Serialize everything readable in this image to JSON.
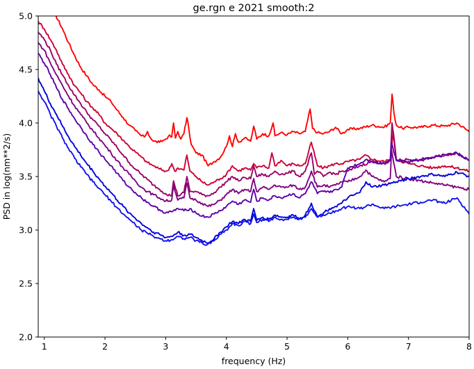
{
  "chart_data": {
    "type": "line",
    "title": "ge.rgn e 2021 smooth:2",
    "xlabel": "frequency (Hz)",
    "ylabel": "PSD in log(nm**2/s)",
    "xlim": [
      0.9,
      8.0
    ],
    "ylim": [
      2.0,
      5.0
    ],
    "xticks": [
      "1",
      "2",
      "3",
      "4",
      "5",
      "6",
      "7",
      "8"
    ],
    "yticks": [
      "2.0",
      "2.5",
      "3.0",
      "3.5",
      "4.0",
      "4.5",
      "5.0"
    ],
    "grid": false,
    "legend": "none",
    "series": [
      {
        "color": "#ff0000",
        "x": [
          1.15,
          1.3,
          1.4,
          1.5,
          1.6,
          1.7,
          1.8,
          1.9,
          2.0,
          2.1,
          2.2,
          2.3,
          2.4,
          2.5,
          2.6,
          2.65,
          2.7,
          2.75,
          2.8,
          2.9,
          3.0,
          3.05,
          3.1,
          3.13,
          3.16,
          3.2,
          3.25,
          3.3,
          3.35,
          3.38,
          3.42,
          3.5,
          3.6,
          3.7,
          3.8,
          3.9,
          4.0,
          4.05,
          4.1,
          4.15,
          4.2,
          4.3,
          4.4,
          4.45,
          4.5,
          4.6,
          4.7,
          4.77,
          4.8,
          4.9,
          5.0,
          5.1,
          5.2,
          5.3,
          5.38,
          5.42,
          5.5,
          5.6,
          5.7,
          5.8,
          5.9,
          6.0,
          6.2,
          6.4,
          6.6,
          6.7,
          6.73,
          6.76,
          6.8,
          6.9,
          7.0,
          7.2,
          7.4,
          7.6,
          7.8,
          8.0
        ],
        "y": [
          5.05,
          4.88,
          4.75,
          4.63,
          4.52,
          4.44,
          4.36,
          4.31,
          4.25,
          4.2,
          4.12,
          4.05,
          3.98,
          3.93,
          3.88,
          3.87,
          3.92,
          3.86,
          3.83,
          3.82,
          3.85,
          3.88,
          3.87,
          4.0,
          3.86,
          3.92,
          3.85,
          3.9,
          4.05,
          3.95,
          3.8,
          3.72,
          3.7,
          3.6,
          3.64,
          3.68,
          3.78,
          3.88,
          3.78,
          3.9,
          3.82,
          3.86,
          3.83,
          3.97,
          3.85,
          3.9,
          3.88,
          4.0,
          3.88,
          3.91,
          3.89,
          3.92,
          3.9,
          3.92,
          4.13,
          3.95,
          3.91,
          3.9,
          3.92,
          3.96,
          3.9,
          3.94,
          3.95,
          3.98,
          3.96,
          4.0,
          4.27,
          4.1,
          3.98,
          3.95,
          3.96,
          3.96,
          3.98,
          3.97,
          4.0,
          3.92
        ]
      },
      {
        "color": "#cc0033",
        "x": [
          0.9,
          1.0,
          1.1,
          1.2,
          1.3,
          1.4,
          1.5,
          1.6,
          1.7,
          1.8,
          1.9,
          2.0,
          2.1,
          2.2,
          2.3,
          2.4,
          2.5,
          2.6,
          2.7,
          2.8,
          2.9,
          3.0,
          3.05,
          3.1,
          3.15,
          3.2,
          3.3,
          3.35,
          3.4,
          3.5,
          3.6,
          3.7,
          3.8,
          3.9,
          4.0,
          4.1,
          4.2,
          4.3,
          4.4,
          4.45,
          4.5,
          4.6,
          4.7,
          4.75,
          4.8,
          4.9,
          5.0,
          5.1,
          5.2,
          5.3,
          5.4,
          5.5,
          5.6,
          5.7,
          5.8,
          5.9,
          6.0,
          6.2,
          6.3,
          6.4,
          6.6,
          6.7,
          6.75,
          6.8,
          7.0,
          7.2,
          7.4,
          7.6,
          7.8,
          8.0
        ],
        "y": [
          4.95,
          4.88,
          4.78,
          4.68,
          4.55,
          4.45,
          4.35,
          4.28,
          4.2,
          4.14,
          4.08,
          4.0,
          3.95,
          3.9,
          3.84,
          3.78,
          3.73,
          3.68,
          3.63,
          3.6,
          3.57,
          3.55,
          3.56,
          3.62,
          3.55,
          3.58,
          3.56,
          3.7,
          3.55,
          3.5,
          3.45,
          3.42,
          3.45,
          3.48,
          3.52,
          3.6,
          3.55,
          3.58,
          3.56,
          3.62,
          3.58,
          3.6,
          3.58,
          3.72,
          3.6,
          3.65,
          3.6,
          3.62,
          3.6,
          3.62,
          3.82,
          3.6,
          3.58,
          3.6,
          3.62,
          3.62,
          3.64,
          3.66,
          3.7,
          3.66,
          3.64,
          3.66,
          3.92,
          3.66,
          3.62,
          3.6,
          3.58,
          3.6,
          3.58,
          3.55
        ]
      },
      {
        "color": "#990066",
        "x": [
          0.9,
          1.0,
          1.1,
          1.2,
          1.3,
          1.4,
          1.5,
          1.6,
          1.7,
          1.8,
          1.9,
          2.0,
          2.1,
          2.2,
          2.3,
          2.4,
          2.5,
          2.6,
          2.7,
          2.8,
          2.9,
          3.0,
          3.1,
          3.13,
          3.2,
          3.3,
          3.35,
          3.4,
          3.5,
          3.6,
          3.7,
          3.8,
          3.9,
          4.0,
          4.1,
          4.2,
          4.3,
          4.4,
          4.45,
          4.5,
          4.6,
          4.7,
          4.8,
          4.9,
          5.0,
          5.1,
          5.2,
          5.3,
          5.4,
          5.45,
          5.5,
          5.6,
          5.7,
          5.8,
          5.9,
          6.0,
          6.2,
          6.4,
          6.6,
          6.7,
          6.73,
          6.8,
          7.0,
          7.2,
          7.4,
          7.6,
          7.8,
          8.0
        ],
        "y": [
          4.85,
          4.78,
          4.68,
          4.55,
          4.45,
          4.35,
          4.26,
          4.18,
          4.1,
          4.03,
          3.97,
          3.9,
          3.84,
          3.77,
          3.7,
          3.63,
          3.57,
          3.52,
          3.47,
          3.42,
          3.38,
          3.34,
          3.32,
          3.46,
          3.32,
          3.35,
          3.5,
          3.36,
          3.36,
          3.33,
          3.32,
          3.35,
          3.4,
          3.45,
          3.5,
          3.46,
          3.49,
          3.48,
          3.6,
          3.5,
          3.52,
          3.5,
          3.55,
          3.52,
          3.53,
          3.55,
          3.5,
          3.55,
          3.72,
          3.52,
          3.55,
          3.5,
          3.54,
          3.52,
          3.55,
          3.55,
          3.6,
          3.64,
          3.62,
          3.65,
          4.0,
          3.65,
          3.66,
          3.65,
          3.68,
          3.7,
          3.72,
          3.65
        ]
      },
      {
        "color": "#800080",
        "x": [
          0.9,
          1.0,
          1.1,
          1.2,
          1.3,
          1.4,
          1.5,
          1.6,
          1.7,
          1.8,
          1.9,
          2.0,
          2.1,
          2.2,
          2.3,
          2.4,
          2.5,
          2.6,
          2.7,
          2.8,
          2.9,
          3.0,
          3.1,
          3.13,
          3.2,
          3.3,
          3.35,
          3.4,
          3.5,
          3.6,
          3.7,
          3.8,
          3.9,
          4.0,
          4.1,
          4.2,
          4.3,
          4.4,
          4.45,
          4.5,
          4.6,
          4.7,
          4.8,
          4.9,
          5.0,
          5.1,
          5.2,
          5.3,
          5.4,
          5.5,
          5.6,
          5.7,
          5.8,
          5.9,
          6.0,
          6.2,
          6.3,
          6.4,
          6.6,
          6.7,
          6.72,
          6.8,
          7.0,
          7.2,
          7.4,
          7.6,
          7.8,
          8.0
        ],
        "y": [
          4.75,
          4.68,
          4.56,
          4.45,
          4.35,
          4.25,
          4.16,
          4.08,
          4.0,
          3.93,
          3.86,
          3.79,
          3.72,
          3.65,
          3.58,
          3.52,
          3.46,
          3.4,
          3.36,
          3.33,
          3.3,
          3.27,
          3.28,
          3.42,
          3.28,
          3.3,
          3.44,
          3.3,
          3.28,
          3.25,
          3.22,
          3.24,
          3.28,
          3.33,
          3.38,
          3.34,
          3.38,
          3.36,
          3.48,
          3.36,
          3.4,
          3.38,
          3.42,
          3.4,
          3.4,
          3.42,
          3.38,
          3.4,
          3.55,
          3.4,
          3.42,
          3.4,
          3.42,
          3.45,
          3.45,
          3.5,
          3.56,
          3.5,
          3.45,
          3.48,
          3.75,
          3.5,
          3.48,
          3.46,
          3.44,
          3.42,
          3.4,
          3.38
        ]
      },
      {
        "color": "#5a00aa",
        "x": [
          0.9,
          1.0,
          1.1,
          1.2,
          1.3,
          1.4,
          1.5,
          1.6,
          1.7,
          1.8,
          1.9,
          2.0,
          2.1,
          2.2,
          2.3,
          2.4,
          2.5,
          2.6,
          2.7,
          2.8,
          2.9,
          3.0,
          3.1,
          3.2,
          3.3,
          3.4,
          3.5,
          3.6,
          3.7,
          3.8,
          3.9,
          4.0,
          4.1,
          4.2,
          4.3,
          4.4,
          4.45,
          4.5,
          4.6,
          4.7,
          4.8,
          4.9,
          5.0,
          5.1,
          5.2,
          5.3,
          5.4,
          5.5,
          5.6,
          5.7,
          5.8,
          5.9,
          6.0,
          6.2,
          6.3,
          6.4,
          6.6,
          6.7,
          6.72,
          6.8,
          7.0,
          7.2,
          7.4,
          7.6,
          7.8,
          8.0
        ],
        "y": [
          4.65,
          4.56,
          4.45,
          4.33,
          4.22,
          4.13,
          4.04,
          3.96,
          3.88,
          3.8,
          3.73,
          3.66,
          3.6,
          3.53,
          3.46,
          3.4,
          3.35,
          3.3,
          3.26,
          3.22,
          3.19,
          3.16,
          3.17,
          3.2,
          3.18,
          3.2,
          3.16,
          3.13,
          3.12,
          3.15,
          3.18,
          3.22,
          3.27,
          3.24,
          3.28,
          3.26,
          3.38,
          3.27,
          3.3,
          3.28,
          3.32,
          3.3,
          3.32,
          3.34,
          3.3,
          3.34,
          3.45,
          3.34,
          3.36,
          3.35,
          3.38,
          3.4,
          3.58,
          3.62,
          3.66,
          3.64,
          3.62,
          3.65,
          3.82,
          3.65,
          3.64,
          3.66,
          3.68,
          3.7,
          3.72,
          3.65
        ]
      },
      {
        "color": "#0000dd",
        "x": [
          0.9,
          1.0,
          1.1,
          1.2,
          1.3,
          1.4,
          1.5,
          1.6,
          1.7,
          1.8,
          1.9,
          2.0,
          2.1,
          2.2,
          2.3,
          2.4,
          2.5,
          2.6,
          2.7,
          2.8,
          2.9,
          3.0,
          3.1,
          3.2,
          3.3,
          3.4,
          3.5,
          3.6,
          3.7,
          3.8,
          3.9,
          4.0,
          4.1,
          4.2,
          4.3,
          4.4,
          4.45,
          4.5,
          4.6,
          4.7,
          4.8,
          4.9,
          5.0,
          5.1,
          5.2,
          5.3,
          5.4,
          5.5,
          5.6,
          5.7,
          5.8,
          5.9,
          6.0,
          6.2,
          6.3,
          6.4,
          6.6,
          6.8,
          7.0,
          7.2,
          7.4,
          7.6,
          7.8,
          8.0
        ],
        "y": [
          4.42,
          4.3,
          4.18,
          4.08,
          3.97,
          3.87,
          3.78,
          3.7,
          3.62,
          3.55,
          3.48,
          3.41,
          3.35,
          3.28,
          3.22,
          3.16,
          3.11,
          3.06,
          3.02,
          2.98,
          2.96,
          2.93,
          2.94,
          2.98,
          2.95,
          2.96,
          2.93,
          2.9,
          2.88,
          2.92,
          2.98,
          3.03,
          3.08,
          3.06,
          3.1,
          3.08,
          3.2,
          3.09,
          3.12,
          3.1,
          3.14,
          3.12,
          3.12,
          3.14,
          3.1,
          3.14,
          3.25,
          3.12,
          3.16,
          3.2,
          3.22,
          3.25,
          3.3,
          3.35,
          3.45,
          3.4,
          3.42,
          3.45,
          3.48,
          3.5,
          3.52,
          3.5,
          3.54,
          3.5
        ]
      },
      {
        "color": "#1111ee",
        "x": [
          0.9,
          1.0,
          1.1,
          1.2,
          1.3,
          1.4,
          1.5,
          1.6,
          1.7,
          1.8,
          1.9,
          2.0,
          2.1,
          2.2,
          2.3,
          2.4,
          2.5,
          2.6,
          2.7,
          2.8,
          2.9,
          3.0,
          3.1,
          3.2,
          3.3,
          3.4,
          3.5,
          3.6,
          3.65,
          3.7,
          3.8,
          3.9,
          4.0,
          4.1,
          4.2,
          4.3,
          4.4,
          4.45,
          4.5,
          4.6,
          4.7,
          4.8,
          4.9,
          5.0,
          5.1,
          5.2,
          5.3,
          5.4,
          5.5,
          5.6,
          5.7,
          5.8,
          5.9,
          6.0,
          6.2,
          6.3,
          6.4,
          6.6,
          6.8,
          7.0,
          7.2,
          7.4,
          7.6,
          7.8,
          8.0
        ],
        "y": [
          4.3,
          4.2,
          4.08,
          3.97,
          3.86,
          3.76,
          3.67,
          3.59,
          3.52,
          3.45,
          3.39,
          3.33,
          3.27,
          3.21,
          3.15,
          3.1,
          3.05,
          3.0,
          2.97,
          2.94,
          2.92,
          2.9,
          2.91,
          2.94,
          2.92,
          2.93,
          2.9,
          2.88,
          2.86,
          2.87,
          2.9,
          2.96,
          3.0,
          3.06,
          3.04,
          3.08,
          3.06,
          3.15,
          3.07,
          3.1,
          3.08,
          3.12,
          3.1,
          3.1,
          3.12,
          3.1,
          3.12,
          3.2,
          3.12,
          3.14,
          3.16,
          3.18,
          3.2,
          3.22,
          3.2,
          3.22,
          3.24,
          3.2,
          3.22,
          3.24,
          3.26,
          3.28,
          3.25,
          3.3,
          3.15
        ]
      }
    ]
  }
}
